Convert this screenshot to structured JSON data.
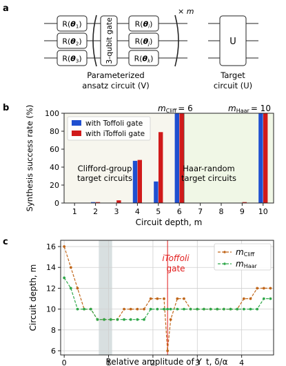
{
  "panel_a": {
    "label": "a",
    "ansatz_gates_left": [
      {
        "text": "R(",
        "sym": "θ",
        "sub": "1",
        "close": ")"
      },
      {
        "text": "R(",
        "sym": "θ",
        "sub": "2",
        "close": ")"
      },
      {
        "text": "R(",
        "sym": "θ",
        "sub": "3",
        "close": ")"
      }
    ],
    "three_qubit_gate": "3-qubit gate",
    "ansatz_gates_right": [
      {
        "text": "R(",
        "sym": "θ",
        "sub": "i",
        "close": ")"
      },
      {
        "text": "R(",
        "sym": "θ",
        "sub": "j",
        "close": ")"
      },
      {
        "text": "R(",
        "sym": "θ",
        "sub": "k",
        "close": ")"
      }
    ],
    "repeat": "× m",
    "ansatz_caption_line1": "Parameterized",
    "ansatz_caption_line2": "ansatz circuit (V)",
    "target_gate": "U",
    "target_caption_line1": "Target",
    "target_caption_line2": "circuit (U)"
  },
  "panel_b": {
    "label": "b",
    "ylabel": "Synthesis success rate (%)",
    "xlabel": "Circuit depth, m",
    "legend": [
      "with Toffoli gate",
      "with iToffoli gate"
    ],
    "region_left": [
      "Clifford-group",
      "target circuits"
    ],
    "region_right": [
      "Haar-random",
      "target circuits"
    ],
    "marker_cliff": "m",
    "marker_cliff_sub": "Cliff",
    "marker_cliff_val": "= 6",
    "marker_haar": "m",
    "marker_haar_sub": "Haar",
    "marker_haar_val": "= 10",
    "colors": {
      "toffoli": "#1f4fd0",
      "itoffoli": "#d01a1a",
      "cliff_bg": "#f7f6ee",
      "haar_bg": "#f0f7e6"
    }
  },
  "panel_c": {
    "label": "c",
    "ylabel": "Circuit depth, m",
    "xlabel": "Relative amplitude of Y_t, δ/α",
    "annotation_line1": "iToffoli",
    "annotation_line2": "gate",
    "legend": [
      "m_Cliff",
      "m_Haar"
    ],
    "colors": {
      "cliff": "#c0661a",
      "haar": "#2fa84a",
      "line": "#e21b1b",
      "band": "#d8dfe0"
    }
  },
  "chart_data": [
    {
      "type": "bar",
      "categories": [
        1,
        2,
        3,
        4,
        5,
        6,
        7,
        8,
        9,
        10
      ],
      "series": [
        {
          "name": "with Toffoli gate",
          "values": [
            0,
            1,
            0,
            47,
            24,
            100,
            0,
            0,
            0,
            100
          ]
        },
        {
          "name": "with iToffoli gate",
          "values": [
            0,
            1,
            3,
            48,
            79,
            100,
            0,
            0,
            1,
            100
          ]
        }
      ],
      "xlabel": "Circuit depth, m",
      "ylabel": "Synthesis success rate (%)",
      "xticks": [
        1,
        2,
        3,
        4,
        5,
        6,
        7,
        8,
        9,
        10
      ],
      "yticks": [
        0,
        20,
        40,
        60,
        80,
        100
      ],
      "ylim": [
        0,
        100
      ],
      "annotations": [
        "m_Cliff = 6",
        "m_Haar = 10"
      ],
      "legend_position": "top-left"
    },
    {
      "type": "line",
      "x": [
        0,
        0.15,
        0.3,
        0.45,
        0.6,
        0.75,
        0.9,
        1.05,
        1.2,
        1.35,
        1.5,
        1.65,
        1.8,
        1.95,
        2.1,
        2.25,
        2.33,
        2.4,
        2.55,
        2.7,
        2.85,
        3.0,
        3.15,
        3.3,
        3.45,
        3.6,
        3.75,
        3.9,
        4.05,
        4.2,
        4.35,
        4.5,
        4.65
      ],
      "series": [
        {
          "name": "m_Cliff",
          "values": [
            16,
            14,
            12,
            10,
            10,
            9,
            9,
            9,
            9,
            10,
            10,
            10,
            10,
            11,
            11,
            11,
            6,
            9,
            11,
            11,
            10,
            10,
            10,
            10,
            10,
            10,
            10,
            10,
            11,
            11,
            12,
            12,
            12
          ]
        },
        {
          "name": "m_Haar",
          "values": [
            13,
            12,
            10,
            10,
            10,
            9,
            9,
            9,
            9,
            9,
            9,
            9,
            9,
            10,
            10,
            10,
            10,
            10,
            10,
            10,
            10,
            10,
            10,
            10,
            10,
            10,
            10,
            10,
            10,
            10,
            10,
            11,
            11
          ]
        }
      ],
      "xlabel": "Relative amplitude of Y_t, δ/α",
      "ylabel": "Circuit depth, m",
      "xticks": [
        0,
        1,
        2,
        3,
        4
      ],
      "yticks": [
        6,
        8,
        10,
        12,
        14,
        16
      ],
      "xlim": [
        -0.08,
        4.72
      ],
      "ylim": [
        5.6,
        16.6
      ],
      "vline": 2.33,
      "band": [
        0.78,
        1.08
      ],
      "grid": true,
      "legend_position": "top-right"
    }
  ]
}
